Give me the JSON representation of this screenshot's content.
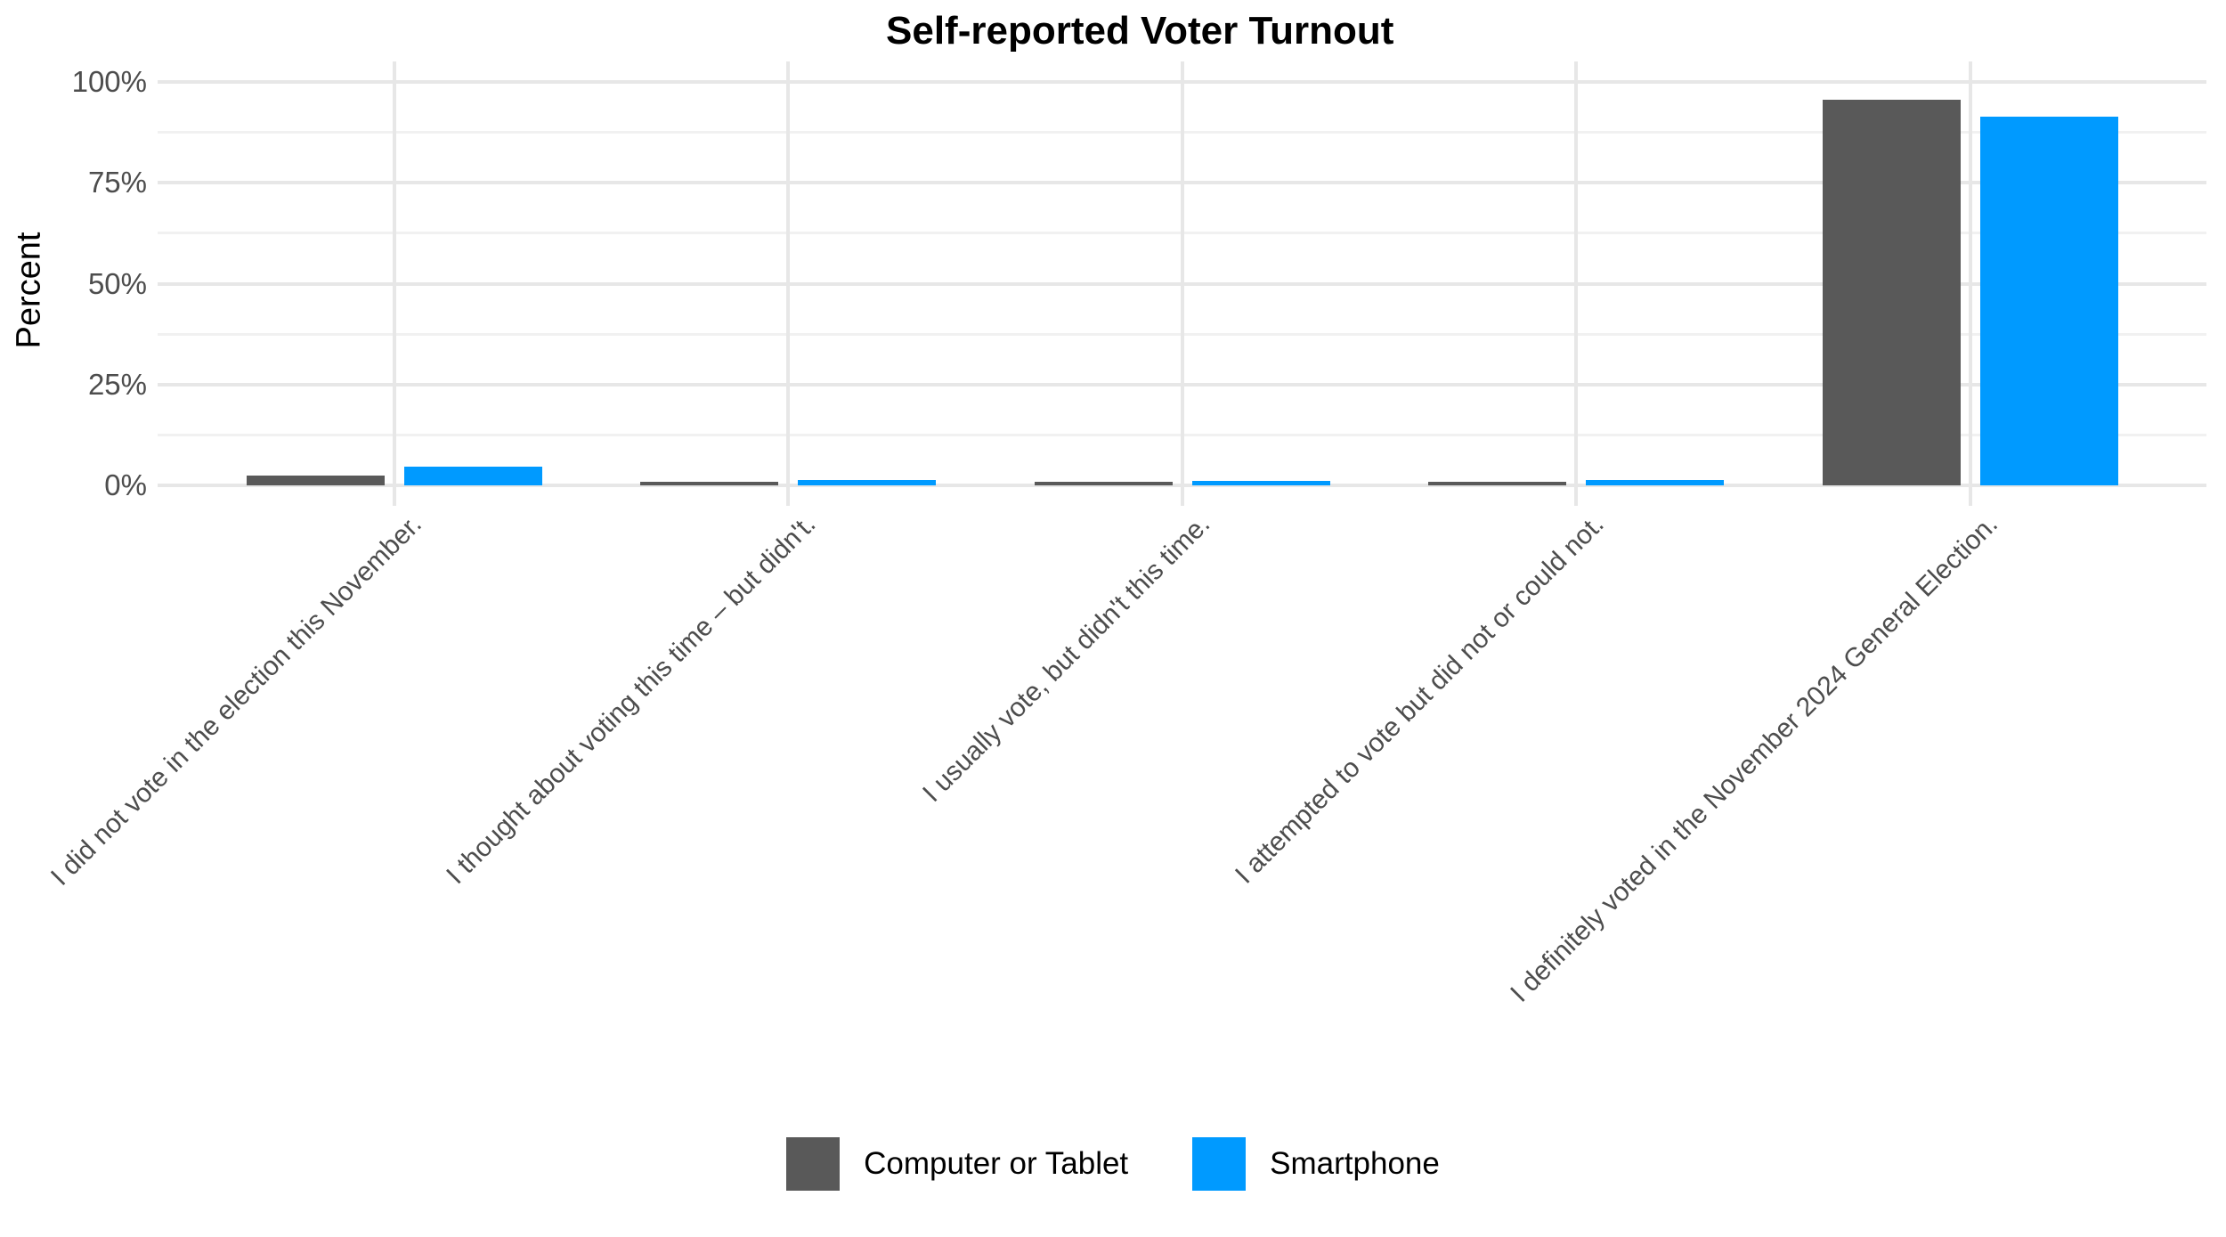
{
  "title": "Self-reported Voter Turnout",
  "chart_data": {
    "type": "bar",
    "title": "Self-reported Voter Turnout",
    "xlabel": "",
    "ylabel": "Percent",
    "ylim": [
      0,
      100
    ],
    "categories": [
      "I did not vote in the election this November.",
      "I thought about voting this time – but didn't.",
      "I usually vote, but didn't this time.",
      "I attempted to vote but did not or could not.",
      "I definitely voted in the November 2024 General Election."
    ],
    "series": [
      {
        "name": "Computer or Tablet",
        "color": "#595959",
        "values": [
          2.5,
          0.8,
          0.8,
          0.8,
          95.5
        ]
      },
      {
        "name": "Smartphone",
        "color": "#009AFF",
        "values": [
          4.6,
          1.4,
          1.2,
          1.3,
          91.3
        ]
      }
    ],
    "yticks": [
      {
        "value": 0,
        "label": "0%"
      },
      {
        "value": 25,
        "label": "25%"
      },
      {
        "value": 50,
        "label": "50%"
      },
      {
        "value": 75,
        "label": "75%"
      },
      {
        "value": 100,
        "label": "100%"
      }
    ],
    "minor_yticks": [
      12.5,
      37.5,
      62.5,
      87.5
    ],
    "grid": true,
    "x_label_angle": 45,
    "legend_position": "bottom"
  }
}
